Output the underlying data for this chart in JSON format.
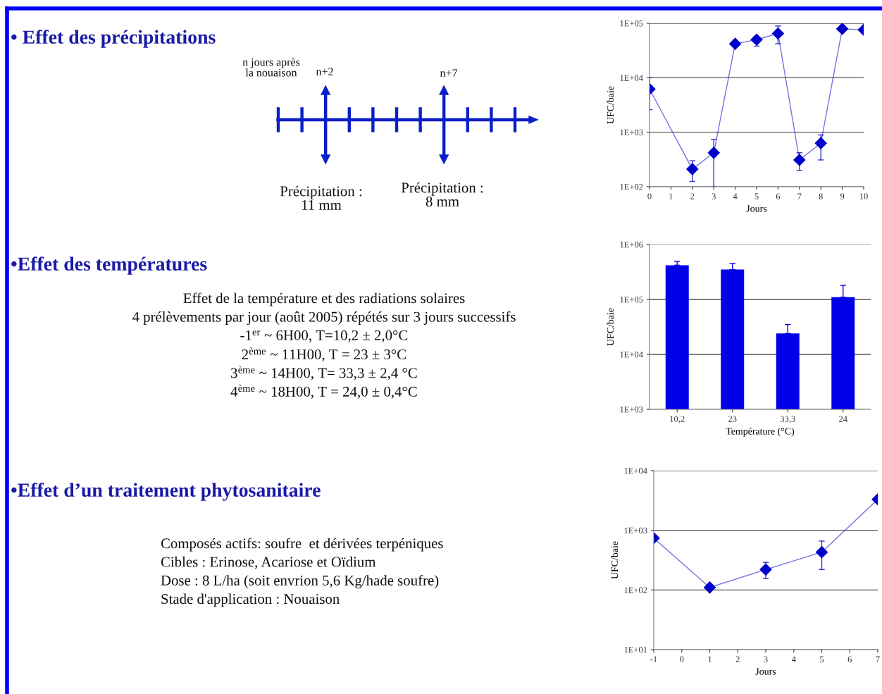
{
  "chart_data": [
    {
      "type": "other",
      "title": "• Effet des précipitations",
      "annotations": [
        "n jours après\nla nouaison",
        "n+2",
        "n+7",
        "Précipitation :\n11 mm",
        "Précipitation :\n8 mm"
      ]
    },
    {
      "type": "line",
      "xlabel": "Jours",
      "ylabel": "UFC/baie",
      "log": "y",
      "grid": "y",
      "marker": "diamond",
      "line_style": "solid",
      "x": [
        0,
        2,
        3,
        4,
        5,
        6,
        7,
        8,
        9,
        10
      ],
      "xlim": [
        0,
        10
      ],
      "xticks": [
        0,
        1,
        2,
        3,
        4,
        5,
        6,
        7,
        8,
        9,
        10
      ],
      "ylim": [
        100,
        100000
      ],
      "yticks": [
        {
          "value": 100,
          "label": "1E+02"
        },
        {
          "value": 1000,
          "label": "1E+03"
        },
        {
          "value": 10000,
          "label": "1E+04"
        },
        {
          "value": 100000,
          "label": "1E+05"
        }
      ],
      "series": [
        {
          "color": "#0000cc",
          "values": [
            6200,
            210,
            420,
            42000,
            50000,
            65000,
            310,
            630,
            79000,
            76000
          ],
          "errors": [
            [
              2600,
              10000
            ],
            [
              125,
              300
            ],
            [
              100,
              740
            ],
            null,
            [
              38000,
              57000
            ],
            [
              42000,
              89000
            ],
            [
              200,
              420
            ],
            [
              310,
              890
            ],
            null,
            null
          ]
        }
      ]
    },
    {
      "type": "other",
      "title": "•Effet des températures",
      "annotations": [
        "Effet de la température et des radiations solaires",
        "4 prélèvements par jour (août 2005) répétés sur 3 jours successifs",
        "-1$^{er}$ ~ 6H00, T=10,2 ± 2,0°C",
        "2$^{ème}$ ~ 11H00, T = 23 ± 3°C",
        "3$^{ème}$ ~ 14H00, T= 33,3 ± 2,4 °C",
        "4$^{ème}$ ~ 18H00, T = 24,0 ± 0,4°C"
      ]
    },
    {
      "type": "bar",
      "xlabel": "Température (°C)",
      "ylabel": "UFC/baie",
      "log": "y",
      "grid": "y",
      "categories": [
        "10,2",
        "23",
        "33,3",
        "24"
      ],
      "ylim": [
        1000,
        1000000
      ],
      "yticks": [
        {
          "value": 1000,
          "label": "1E+03"
        },
        {
          "value": 10000,
          "label": "1E+04"
        },
        {
          "value": 100000,
          "label": "1E+05"
        },
        {
          "value": 1000000,
          "label": "1E+06"
        }
      ],
      "series": [
        {
          "color": "#0000e6",
          "values": [
            420000,
            350000,
            24000,
            110000
          ],
          "errors": [
            [
              420000,
              490000
            ],
            [
              350000,
              450000
            ],
            [
              24000,
              35000
            ],
            [
              110000,
              180000
            ]
          ]
        }
      ]
    },
    {
      "type": "other",
      "title": "•Effet d’un traitement phytosanitaire",
      "annotations": [
        "Composés actifs: soufre  et dérivées terpéniques",
        "Cibles : Erinose, Acariose et Oïdium",
        "Dose : 8 L/ha (soit envrion 5,6 Kg/hade soufre)",
        "Stade d'application : Nouaison"
      ]
    },
    {
      "type": "line",
      "xlabel": "Jours",
      "ylabel": "UFC/baie",
      "log": "y",
      "grid": "y",
      "marker": "diamond",
      "line_style": "solid",
      "x": [
        -1,
        1,
        3,
        5,
        7
      ],
      "xlim": [
        -1,
        7
      ],
      "xticks": [
        -1,
        0,
        1,
        2,
        3,
        4,
        5,
        6,
        7
      ],
      "ylim": [
        10,
        10000
      ],
      "yticks": [
        {
          "value": 10,
          "label": "1E+01"
        },
        {
          "value": 100,
          "label": "1E+02"
        },
        {
          "value": 1000,
          "label": "1E+03"
        },
        {
          "value": 10000,
          "label": "1E+04"
        }
      ],
      "series": [
        {
          "color": "#0000cc",
          "values": [
            740,
            110,
            220,
            430,
            3300
          ],
          "errors": [
            null,
            null,
            [
              155,
              290
            ],
            [
              220,
              660
            ],
            null
          ]
        }
      ]
    }
  ]
}
